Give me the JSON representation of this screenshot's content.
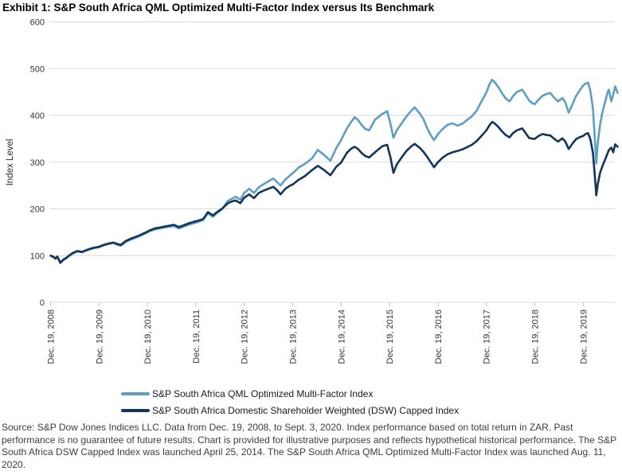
{
  "page": {
    "title": "Exhibit 1: S&P South Africa QML Optimized Multi-Factor Index versus Its Benchmark"
  },
  "chart_data": {
    "type": "line",
    "title": "Exhibit 1: S&P South Africa QML Optimized Multi-Factor Index versus Its Benchmark",
    "xlabel": "",
    "ylabel": "Index Level",
    "ylim": [
      0,
      600
    ],
    "yticks": [
      0,
      100,
      200,
      300,
      400,
      500,
      600
    ],
    "grid": "horizontal-gridlines",
    "legend_position": "bottom",
    "x_unit": "years since first tick (Dec. 19, 2008); data runs to Sept. 3, 2020",
    "xtick_labels": [
      "Dec. 19, 2008",
      "Dec. 19, 2009",
      "Dec. 19, 2010",
      "Dec. 19, 2011",
      "Dec. 19, 2012",
      "Dec. 19, 2013",
      "Dec. 19, 2014",
      "Dec. 19, 2015",
      "Dec. 19, 2016",
      "Dec. 19, 2017",
      "Dec. 19, 2018",
      "Dec. 19, 2019"
    ],
    "series": [
      {
        "name": "S&P South Africa QML Optimized Multi-Factor Index",
        "color": "#5E9EC4",
        "points": [
          [
            0,
            100
          ],
          [
            0.05,
            97
          ],
          [
            0.1,
            93
          ],
          [
            0.14,
            97
          ],
          [
            0.2,
            84
          ],
          [
            0.26,
            90
          ],
          [
            0.32,
            94
          ],
          [
            0.38,
            99
          ],
          [
            0.45,
            104
          ],
          [
            0.55,
            109
          ],
          [
            0.65,
            107
          ],
          [
            0.72,
            110
          ],
          [
            0.8,
            113
          ],
          [
            0.9,
            116
          ],
          [
            1,
            118
          ],
          [
            1.1,
            122
          ],
          [
            1.2,
            125
          ],
          [
            1.3,
            127
          ],
          [
            1.38,
            123
          ],
          [
            1.45,
            121
          ],
          [
            1.55,
            129
          ],
          [
            1.65,
            134
          ],
          [
            1.75,
            138
          ],
          [
            1.85,
            142
          ],
          [
            1.95,
            147
          ],
          [
            2.05,
            152
          ],
          [
            2.15,
            156
          ],
          [
            2.25,
            158
          ],
          [
            2.35,
            160
          ],
          [
            2.45,
            162
          ],
          [
            2.55,
            163
          ],
          [
            2.65,
            158
          ],
          [
            2.75,
            162
          ],
          [
            2.85,
            166
          ],
          [
            2.95,
            169
          ],
          [
            3.05,
            172
          ],
          [
            3.15,
            176
          ],
          [
            3.25,
            191
          ],
          [
            3.35,
            183
          ],
          [
            3.45,
            192
          ],
          [
            3.55,
            200
          ],
          [
            3.66,
            217
          ],
          [
            3.75,
            222
          ],
          [
            3.82,
            226
          ],
          [
            3.92,
            220
          ],
          [
            4,
            234
          ],
          [
            4.1,
            243
          ],
          [
            4.2,
            234
          ],
          [
            4.3,
            246
          ],
          [
            4.4,
            253
          ],
          [
            4.5,
            259
          ],
          [
            4.6,
            265
          ],
          [
            4.68,
            257
          ],
          [
            4.75,
            250
          ],
          [
            4.85,
            263
          ],
          [
            4.95,
            272
          ],
          [
            5,
            276
          ],
          [
            5.12,
            288
          ],
          [
            5.25,
            296
          ],
          [
            5.4,
            308
          ],
          [
            5.52,
            326
          ],
          [
            5.65,
            315
          ],
          [
            5.78,
            303
          ],
          [
            5.9,
            330
          ],
          [
            6,
            347
          ],
          [
            6.12,
            372
          ],
          [
            6.2,
            385
          ],
          [
            6.28,
            396
          ],
          [
            6.35,
            390
          ],
          [
            6.42,
            380
          ],
          [
            6.5,
            371
          ],
          [
            6.58,
            368
          ],
          [
            6.7,
            391
          ],
          [
            6.85,
            403
          ],
          [
            6.95,
            409
          ],
          [
            7.02,
            382
          ],
          [
            7.08,
            352
          ],
          [
            7.15,
            368
          ],
          [
            7.25,
            383
          ],
          [
            7.35,
            398
          ],
          [
            7.45,
            410
          ],
          [
            7.52,
            417
          ],
          [
            7.63,
            403
          ],
          [
            7.7,
            392
          ],
          [
            7.78,
            372
          ],
          [
            7.85,
            358
          ],
          [
            7.92,
            347
          ],
          [
            8,
            360
          ],
          [
            8.1,
            371
          ],
          [
            8.2,
            380
          ],
          [
            8.3,
            383
          ],
          [
            8.4,
            378
          ],
          [
            8.5,
            382
          ],
          [
            8.6,
            390
          ],
          [
            8.7,
            398
          ],
          [
            8.8,
            410
          ],
          [
            8.9,
            430
          ],
          [
            9,
            449
          ],
          [
            9.07,
            468
          ],
          [
            9.12,
            476
          ],
          [
            9.18,
            470
          ],
          [
            9.25,
            460
          ],
          [
            9.32,
            448
          ],
          [
            9.4,
            436
          ],
          [
            9.48,
            430
          ],
          [
            9.55,
            441
          ],
          [
            9.63,
            450
          ],
          [
            9.74,
            455
          ],
          [
            9.8,
            446
          ],
          [
            9.88,
            432
          ],
          [
            9.95,
            426
          ],
          [
            10,
            424
          ],
          [
            10.08,
            434
          ],
          [
            10.16,
            442
          ],
          [
            10.25,
            446
          ],
          [
            10.32,
            448
          ],
          [
            10.4,
            438
          ],
          [
            10.48,
            430
          ],
          [
            10.57,
            437
          ],
          [
            10.63,
            428
          ],
          [
            10.7,
            406
          ],
          [
            10.78,
            424
          ],
          [
            10.85,
            441
          ],
          [
            10.92,
            452
          ],
          [
            11,
            464
          ],
          [
            11.05,
            468
          ],
          [
            11.1,
            470
          ],
          [
            11.15,
            452
          ],
          [
            11.2,
            415
          ],
          [
            11.24,
            350
          ],
          [
            11.27,
            297
          ],
          [
            11.3,
            340
          ],
          [
            11.35,
            382
          ],
          [
            11.4,
            408
          ],
          [
            11.45,
            428
          ],
          [
            11.5,
            448
          ],
          [
            11.53,
            455
          ],
          [
            11.58,
            430
          ],
          [
            11.62,
            445
          ],
          [
            11.66,
            462
          ],
          [
            11.71,
            448
          ]
        ]
      },
      {
        "name": "S&P South Africa Domestic Shareholder Weighted (DSW) Capped Index",
        "color": "#11355B",
        "points": [
          [
            0,
            100
          ],
          [
            0.05,
            98
          ],
          [
            0.1,
            94
          ],
          [
            0.14,
            98
          ],
          [
            0.2,
            85
          ],
          [
            0.26,
            91
          ],
          [
            0.32,
            95
          ],
          [
            0.38,
            100
          ],
          [
            0.45,
            105
          ],
          [
            0.55,
            110
          ],
          [
            0.65,
            108
          ],
          [
            0.72,
            111
          ],
          [
            0.8,
            114
          ],
          [
            0.9,
            117
          ],
          [
            1,
            119
          ],
          [
            1.1,
            123
          ],
          [
            1.2,
            126
          ],
          [
            1.3,
            128
          ],
          [
            1.38,
            125
          ],
          [
            1.45,
            123
          ],
          [
            1.55,
            131
          ],
          [
            1.65,
            136
          ],
          [
            1.75,
            140
          ],
          [
            1.85,
            144
          ],
          [
            1.95,
            149
          ],
          [
            2.05,
            154
          ],
          [
            2.15,
            158
          ],
          [
            2.25,
            160
          ],
          [
            2.35,
            162
          ],
          [
            2.45,
            164
          ],
          [
            2.55,
            166
          ],
          [
            2.65,
            161
          ],
          [
            2.75,
            165
          ],
          [
            2.85,
            169
          ],
          [
            2.95,
            172
          ],
          [
            3.05,
            175
          ],
          [
            3.15,
            178
          ],
          [
            3.25,
            193
          ],
          [
            3.35,
            186
          ],
          [
            3.45,
            194
          ],
          [
            3.55,
            201
          ],
          [
            3.66,
            212
          ],
          [
            3.75,
            216
          ],
          [
            3.82,
            218
          ],
          [
            3.92,
            212
          ],
          [
            4,
            224
          ],
          [
            4.1,
            231
          ],
          [
            4.2,
            223
          ],
          [
            4.3,
            234
          ],
          [
            4.4,
            239
          ],
          [
            4.5,
            243
          ],
          [
            4.6,
            247
          ],
          [
            4.68,
            240
          ],
          [
            4.75,
            231
          ],
          [
            4.85,
            243
          ],
          [
            4.95,
            250
          ],
          [
            5,
            252
          ],
          [
            5.12,
            262
          ],
          [
            5.25,
            270
          ],
          [
            5.4,
            283
          ],
          [
            5.52,
            292
          ],
          [
            5.65,
            283
          ],
          [
            5.78,
            272
          ],
          [
            5.9,
            290
          ],
          [
            6,
            299
          ],
          [
            6.12,
            320
          ],
          [
            6.2,
            328
          ],
          [
            6.28,
            333
          ],
          [
            6.35,
            328
          ],
          [
            6.42,
            320
          ],
          [
            6.5,
            313
          ],
          [
            6.58,
            310
          ],
          [
            6.7,
            321
          ],
          [
            6.85,
            334
          ],
          [
            6.95,
            337
          ],
          [
            7.02,
            310
          ],
          [
            7.08,
            277
          ],
          [
            7.15,
            295
          ],
          [
            7.25,
            310
          ],
          [
            7.35,
            324
          ],
          [
            7.45,
            334
          ],
          [
            7.52,
            339
          ],
          [
            7.63,
            330
          ],
          [
            7.7,
            322
          ],
          [
            7.78,
            311
          ],
          [
            7.85,
            300
          ],
          [
            7.92,
            289
          ],
          [
            8,
            300
          ],
          [
            8.1,
            310
          ],
          [
            8.2,
            317
          ],
          [
            8.3,
            321
          ],
          [
            8.4,
            324
          ],
          [
            8.5,
            327
          ],
          [
            8.6,
            332
          ],
          [
            8.7,
            337
          ],
          [
            8.8,
            345
          ],
          [
            8.9,
            356
          ],
          [
            9,
            368
          ],
          [
            9.07,
            380
          ],
          [
            9.12,
            386
          ],
          [
            9.18,
            382
          ],
          [
            9.25,
            375
          ],
          [
            9.32,
            366
          ],
          [
            9.4,
            358
          ],
          [
            9.48,
            353
          ],
          [
            9.55,
            362
          ],
          [
            9.63,
            368
          ],
          [
            9.74,
            372
          ],
          [
            9.8,
            364
          ],
          [
            9.88,
            352
          ],
          [
            9.95,
            350
          ],
          [
            10,
            350
          ],
          [
            10.08,
            356
          ],
          [
            10.16,
            360
          ],
          [
            10.25,
            358
          ],
          [
            10.32,
            357
          ],
          [
            10.4,
            350
          ],
          [
            10.48,
            344
          ],
          [
            10.57,
            351
          ],
          [
            10.63,
            344
          ],
          [
            10.7,
            328
          ],
          [
            10.78,
            340
          ],
          [
            10.85,
            349
          ],
          [
            10.92,
            353
          ],
          [
            11,
            356
          ],
          [
            11.05,
            360
          ],
          [
            11.1,
            362
          ],
          [
            11.15,
            348
          ],
          [
            11.2,
            320
          ],
          [
            11.24,
            270
          ],
          [
            11.27,
            229
          ],
          [
            11.3,
            252
          ],
          [
            11.35,
            278
          ],
          [
            11.4,
            292
          ],
          [
            11.45,
            305
          ],
          [
            11.5,
            318
          ],
          [
            11.53,
            326
          ],
          [
            11.58,
            331
          ],
          [
            11.62,
            321
          ],
          [
            11.66,
            338
          ],
          [
            11.71,
            333
          ]
        ]
      }
    ]
  },
  "legend": {
    "items": [
      {
        "label": "S&P South Africa QML Optimized Multi-Factor Index",
        "color": "#5E9EC4"
      },
      {
        "label": "S&P South Africa Domestic Shareholder Weighted (DSW) Capped Index",
        "color": "#11355B"
      }
    ]
  },
  "footer": {
    "source_note": "Source: S&P Dow Jones Indices LLC. Data from Dec. 19, 2008, to Sept. 3, 2020. Index performance based on total return in ZAR. Past performance is no guarantee of future results. Chart is provided for illustrative purposes and reflects hypothetical historical performance. The S&P South Africa DSW Capped Index was launched April 25, 2014. The S&P South Africa QML Optimized Multi-Factor Index was launched Aug. 11, 2020."
  },
  "colors": {
    "gridline": "#D9D9D9",
    "tick": "#BFBFBF",
    "axis_text": "#353535"
  }
}
